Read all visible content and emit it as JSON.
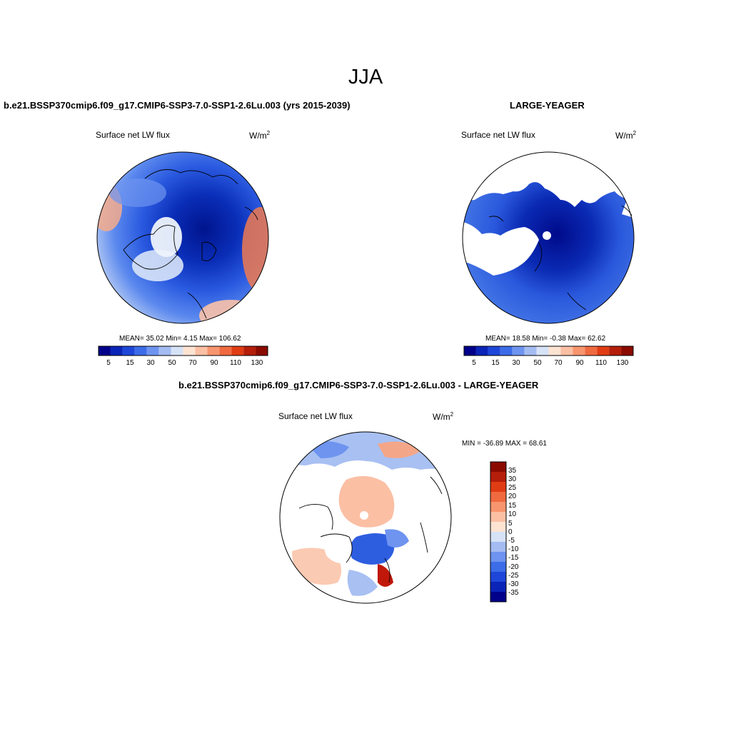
{
  "main_title": "JJA",
  "panels": [
    {
      "title": "b.e21.BSSP370cmip6.f09_g17.CMIP6-SSP3-7.0-SSP1-2.6Lu.003 (yrs 2015-2039)",
      "variable": "Surface net LW flux",
      "units_base": "W/m",
      "units_sup": "2",
      "stats": "MEAN=  35.02  Min=   4.15  Max= 106.62",
      "colorbar_labels": [
        "5",
        "15",
        "30",
        "50",
        "70",
        "90",
        "110",
        "130"
      ]
    },
    {
      "title": "LARGE-YEAGER",
      "variable": "Surface net LW flux",
      "units_base": "W/m",
      "units_sup": "2",
      "stats": "MEAN=  18.58  Min=  -0.38  Max=  62.62",
      "colorbar_labels": [
        "5",
        "15",
        "30",
        "50",
        "70",
        "90",
        "110",
        "130"
      ]
    },
    {
      "title": "b.e21.BSSP370cmip6.f09_g17.CMIP6-SSP3-7.0-SSP1-2.6Lu.003 - LARGE-YEAGER",
      "variable": "Surface net LW flux",
      "units_base": "W/m",
      "units_sup": "2",
      "stats": "MIN = -36.89 MAX =  68.61",
      "colorbar_labels": [
        "35",
        "30",
        "25",
        "20",
        "15",
        "10",
        "5",
        "0",
        "-5",
        "-10",
        "-15",
        "-20",
        "-25",
        "-30",
        "-35"
      ]
    }
  ],
  "colors": {
    "abs_scale": [
      "#00008a",
      "#0a24b8",
      "#1e46d8",
      "#3c6ce8",
      "#6e94f0",
      "#a4bcf2",
      "#d6e2f6",
      "#fde3d2",
      "#fbbfa4",
      "#f7956e",
      "#f06a40",
      "#e03c14",
      "#b41e0a",
      "#8a0a00"
    ],
    "diff_scale": [
      "#8a0a00",
      "#b41e0a",
      "#e03c14",
      "#f06a40",
      "#f7956e",
      "#fbbfa4",
      "#fde3d2",
      "#d6e2f6",
      "#a4bcf2",
      "#6e94f0",
      "#3c6ce8",
      "#1e46d8",
      "#0a24b8",
      "#00008a"
    ]
  }
}
